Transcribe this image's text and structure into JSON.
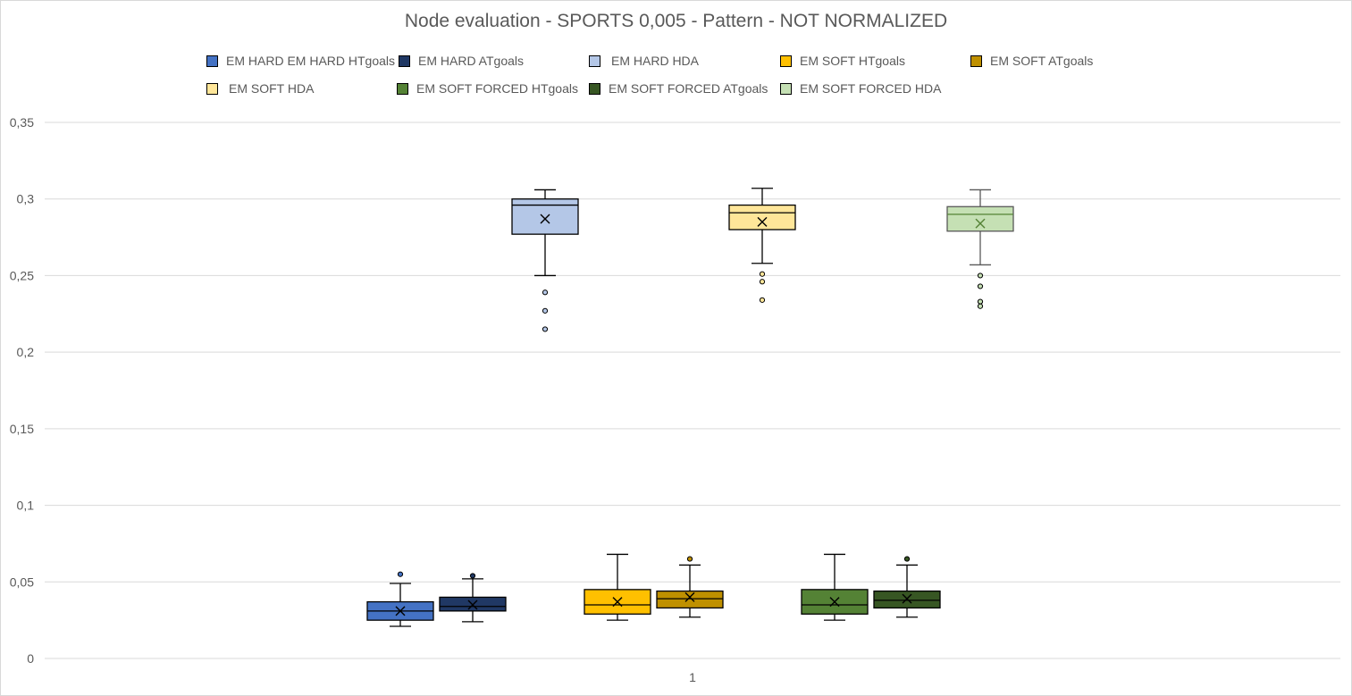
{
  "chart_data": {
    "type": "box",
    "title": "Node evaluation - SPORTS 0,005 - Pattern - NOT NORMALIZED",
    "xlabel": "",
    "ylabel": "",
    "ylim": [
      0,
      0.35
    ],
    "y_ticks": [
      {
        "value": 0,
        "label": "0"
      },
      {
        "value": 0.05,
        "label": "0,05"
      },
      {
        "value": 0.1,
        "label": "0,1"
      },
      {
        "value": 0.15,
        "label": "0,15"
      },
      {
        "value": 0.2,
        "label": "0,2"
      },
      {
        "value": 0.25,
        "label": "0,25"
      },
      {
        "value": 0.3,
        "label": "0,3"
      },
      {
        "value": 0.35,
        "label": "0,35"
      }
    ],
    "categories": [
      "1"
    ],
    "grid": true,
    "legend_position": "top",
    "series": [
      {
        "name": "EM HARD EM HARD HTgoals",
        "color": "#4472c4",
        "median_color": "#000000",
        "whisker_color": "#000000",
        "min": 0.021,
        "q1": 0.025,
        "median": 0.031,
        "q3": 0.037,
        "max": 0.049,
        "mean": 0.031,
        "outliers": [
          0.055
        ]
      },
      {
        "name": "EM HARD ATgoals",
        "color": "#203864",
        "median_color": "#000000",
        "whisker_color": "#000000",
        "min": 0.024,
        "q1": 0.031,
        "median": 0.034,
        "q3": 0.04,
        "max": 0.052,
        "mean": 0.035,
        "outliers": [
          0.054
        ]
      },
      {
        "name": "EM HARD HDA",
        "color": "#b4c7e7",
        "median_color": "#000000",
        "whisker_color": "#000000",
        "min": 0.25,
        "q1": 0.277,
        "median": 0.296,
        "q3": 0.3,
        "max": 0.306,
        "mean": 0.287,
        "outliers": [
          0.239,
          0.227,
          0.215
        ]
      },
      {
        "name": "EM SOFT HTgoals",
        "color": "#ffc000",
        "median_color": "#000000",
        "whisker_color": "#000000",
        "min": 0.025,
        "q1": 0.029,
        "median": 0.035,
        "q3": 0.045,
        "max": 0.068,
        "mean": 0.037,
        "outliers": []
      },
      {
        "name": "EM SOFT ATgoals",
        "color": "#bf9000",
        "median_color": "#000000",
        "whisker_color": "#000000",
        "min": 0.027,
        "q1": 0.033,
        "median": 0.039,
        "q3": 0.044,
        "max": 0.061,
        "mean": 0.04,
        "outliers": [
          0.065
        ]
      },
      {
        "name": "EM SOFT HDA",
        "color": "#ffe699",
        "median_color": "#000000",
        "whisker_color": "#000000",
        "min": 0.258,
        "q1": 0.28,
        "median": 0.291,
        "q3": 0.296,
        "max": 0.307,
        "mean": 0.285,
        "outliers": [
          0.251,
          0.246,
          0.234
        ]
      },
      {
        "name": "EM SOFT FORCED HTgoals",
        "color": "#548235",
        "median_color": "#000000",
        "whisker_color": "#000000",
        "min": 0.025,
        "q1": 0.029,
        "median": 0.035,
        "q3": 0.045,
        "max": 0.068,
        "mean": 0.037,
        "outliers": []
      },
      {
        "name": "EM SOFT FORCED ATgoals",
        "color": "#375623",
        "median_color": "#000000",
        "whisker_color": "#000000",
        "min": 0.027,
        "q1": 0.033,
        "median": 0.038,
        "q3": 0.044,
        "max": 0.061,
        "mean": 0.039,
        "outliers": [
          0.065
        ]
      },
      {
        "name": "EM SOFT FORCED HDA",
        "color": "#c5e0b4",
        "median_color": "#548235",
        "whisker_color": "#595959",
        "min": 0.257,
        "q1": 0.279,
        "median": 0.29,
        "q3": 0.295,
        "max": 0.306,
        "mean": 0.284,
        "outliers": [
          0.25,
          0.243,
          0.233,
          0.23
        ]
      }
    ]
  }
}
